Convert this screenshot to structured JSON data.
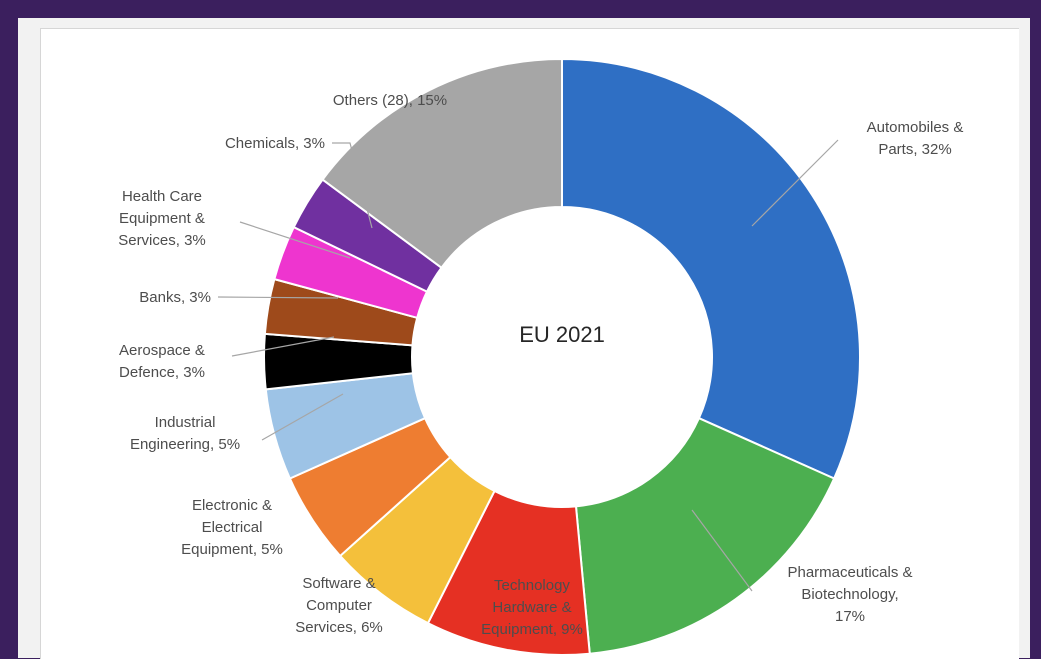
{
  "chart_data": {
    "type": "pie",
    "variant": "donut",
    "center_label": "EU 2021",
    "slices": [
      {
        "label": "Automobiles & Parts, 32%",
        "value": 32,
        "color": "#2f6fc4"
      },
      {
        "label": "Pharmaceuticals & Biotechnology, 17%",
        "value": 17,
        "color": "#4caf50"
      },
      {
        "label": "Technology Hardware & Equipment, 9%",
        "value": 9,
        "color": "#e53023"
      },
      {
        "label": "Software & Computer Services, 6%",
        "value": 6,
        "color": "#f4c03b"
      },
      {
        "label": "Electronic & Electrical Equipment, 5%",
        "value": 5,
        "color": "#ee7d31"
      },
      {
        "label": "Industrial Engineering, 5%",
        "value": 5,
        "color": "#9dc3e6"
      },
      {
        "label": "Aerospace & Defence, 3%",
        "value": 3,
        "color": "#000000"
      },
      {
        "label": "Banks, 3%",
        "value": 3,
        "color": "#9e4a1b"
      },
      {
        "label": "Health Care Equipment & Services, 3%",
        "value": 3,
        "color": "#ee35cf"
      },
      {
        "label": "Chemicals, 3%",
        "value": 3,
        "color": "#7030a0"
      },
      {
        "label": "Others (28), 15%",
        "value": 15,
        "color": "#a6a6a6"
      }
    ]
  }
}
